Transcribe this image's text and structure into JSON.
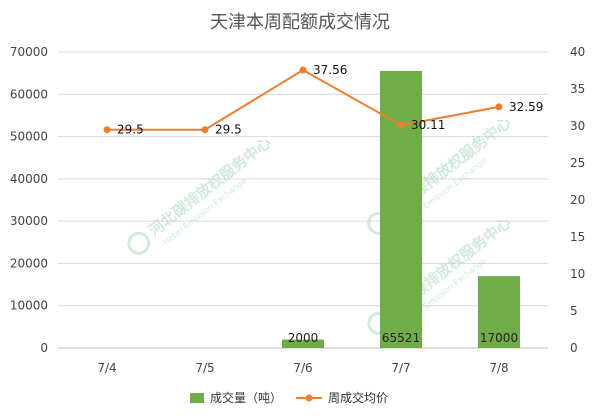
{
  "chart_data": {
    "type": "bar",
    "title": "天津本周配额成交情况",
    "categories": [
      "7/4",
      "7/5",
      "7/6",
      "7/7",
      "7/8"
    ],
    "series": [
      {
        "name": "成交量（吨）",
        "type": "bar",
        "axis": "left",
        "values": [
          0,
          0,
          2000,
          65521,
          17000
        ],
        "labels": [
          "",
          "",
          "2000",
          "65521",
          "17000"
        ],
        "color": "#70ad47"
      },
      {
        "name": "周成交均价",
        "type": "line",
        "axis": "right",
        "values": [
          29.5,
          29.5,
          37.56,
          30.11,
          32.59
        ],
        "labels": [
          "29.5",
          "29.5",
          "37.56",
          "30.11",
          "32.59"
        ],
        "color": "#ed7d31"
      }
    ],
    "y_left": {
      "min": 0,
      "max": 70000,
      "ticks": [
        "0",
        "10000",
        "20000",
        "30000",
        "40000",
        "50000",
        "60000",
        "70000"
      ]
    },
    "y_right": {
      "min": 0,
      "max": 40,
      "ticks": [
        "0",
        "5",
        "10",
        "15",
        "20",
        "25",
        "30",
        "35",
        "40"
      ]
    },
    "grid": true,
    "legend": "bottom",
    "watermark": {
      "cn": "河北碳排放权服务中心",
      "en": "Hebei Emission Exchange"
    }
  }
}
